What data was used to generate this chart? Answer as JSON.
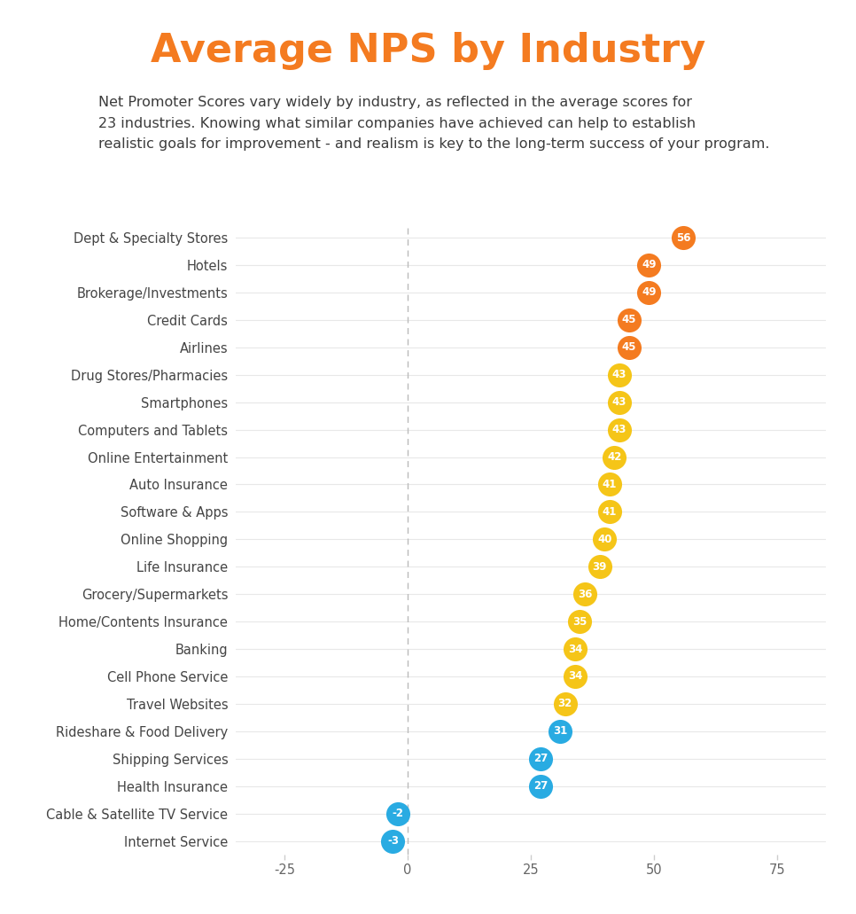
{
  "title": "Average NPS by Industry",
  "subtitle": "Net Promoter Scores vary widely by industry, as reflected in the average scores for\n23 industries. Knowing what similar companies have achieved can help to establish\nrealistic goals for improvement - and realism is key to the long-term success of your program.",
  "title_color": "#F47B20",
  "subtitle_color": "#3C3C3C",
  "background_color": "#FFFFFF",
  "categories": [
    "Dept & Specialty Stores",
    "Hotels",
    "Brokerage/Investments",
    "Credit Cards",
    "Airlines",
    "Drug Stores/Pharmacies",
    "Smartphones",
    "Computers and Tablets",
    "Online Entertainment",
    "Auto Insurance",
    "Software & Apps",
    "Online Shopping",
    "Life Insurance",
    "Grocery/Supermarkets",
    "Home/Contents Insurance",
    "Banking",
    "Cell Phone Service",
    "Travel Websites",
    "Rideshare & Food Delivery",
    "Shipping Services",
    "Health Insurance",
    "Cable & Satellite TV Service",
    "Internet Service"
  ],
  "values": [
    56,
    49,
    49,
    45,
    45,
    43,
    43,
    43,
    42,
    41,
    41,
    40,
    39,
    36,
    35,
    34,
    34,
    32,
    31,
    27,
    27,
    -2,
    -3
  ],
  "dot_colors": [
    "#F47B20",
    "#F47B20",
    "#F47B20",
    "#F47B20",
    "#F47B20",
    "#F5C518",
    "#F5C518",
    "#F5C518",
    "#F5C518",
    "#F5C518",
    "#F5C518",
    "#F5C518",
    "#F5C518",
    "#F5C518",
    "#F5C518",
    "#F5C518",
    "#F5C518",
    "#F5C518",
    "#29ABE2",
    "#29ABE2",
    "#29ABE2",
    "#29ABE2",
    "#29ABE2"
  ],
  "xlim": [
    -35,
    85
  ],
  "xticks": [
    -25,
    0,
    25,
    50,
    75
  ],
  "dot_size": 380,
  "line_color": "#E8E8E8",
  "dashed_line_color": "#BBBBBB",
  "text_color": "#FFFFFF",
  "label_fontsize": 10.5,
  "value_fontsize": 8.5,
  "title_fontsize": 32,
  "subtitle_fontsize": 11.5
}
